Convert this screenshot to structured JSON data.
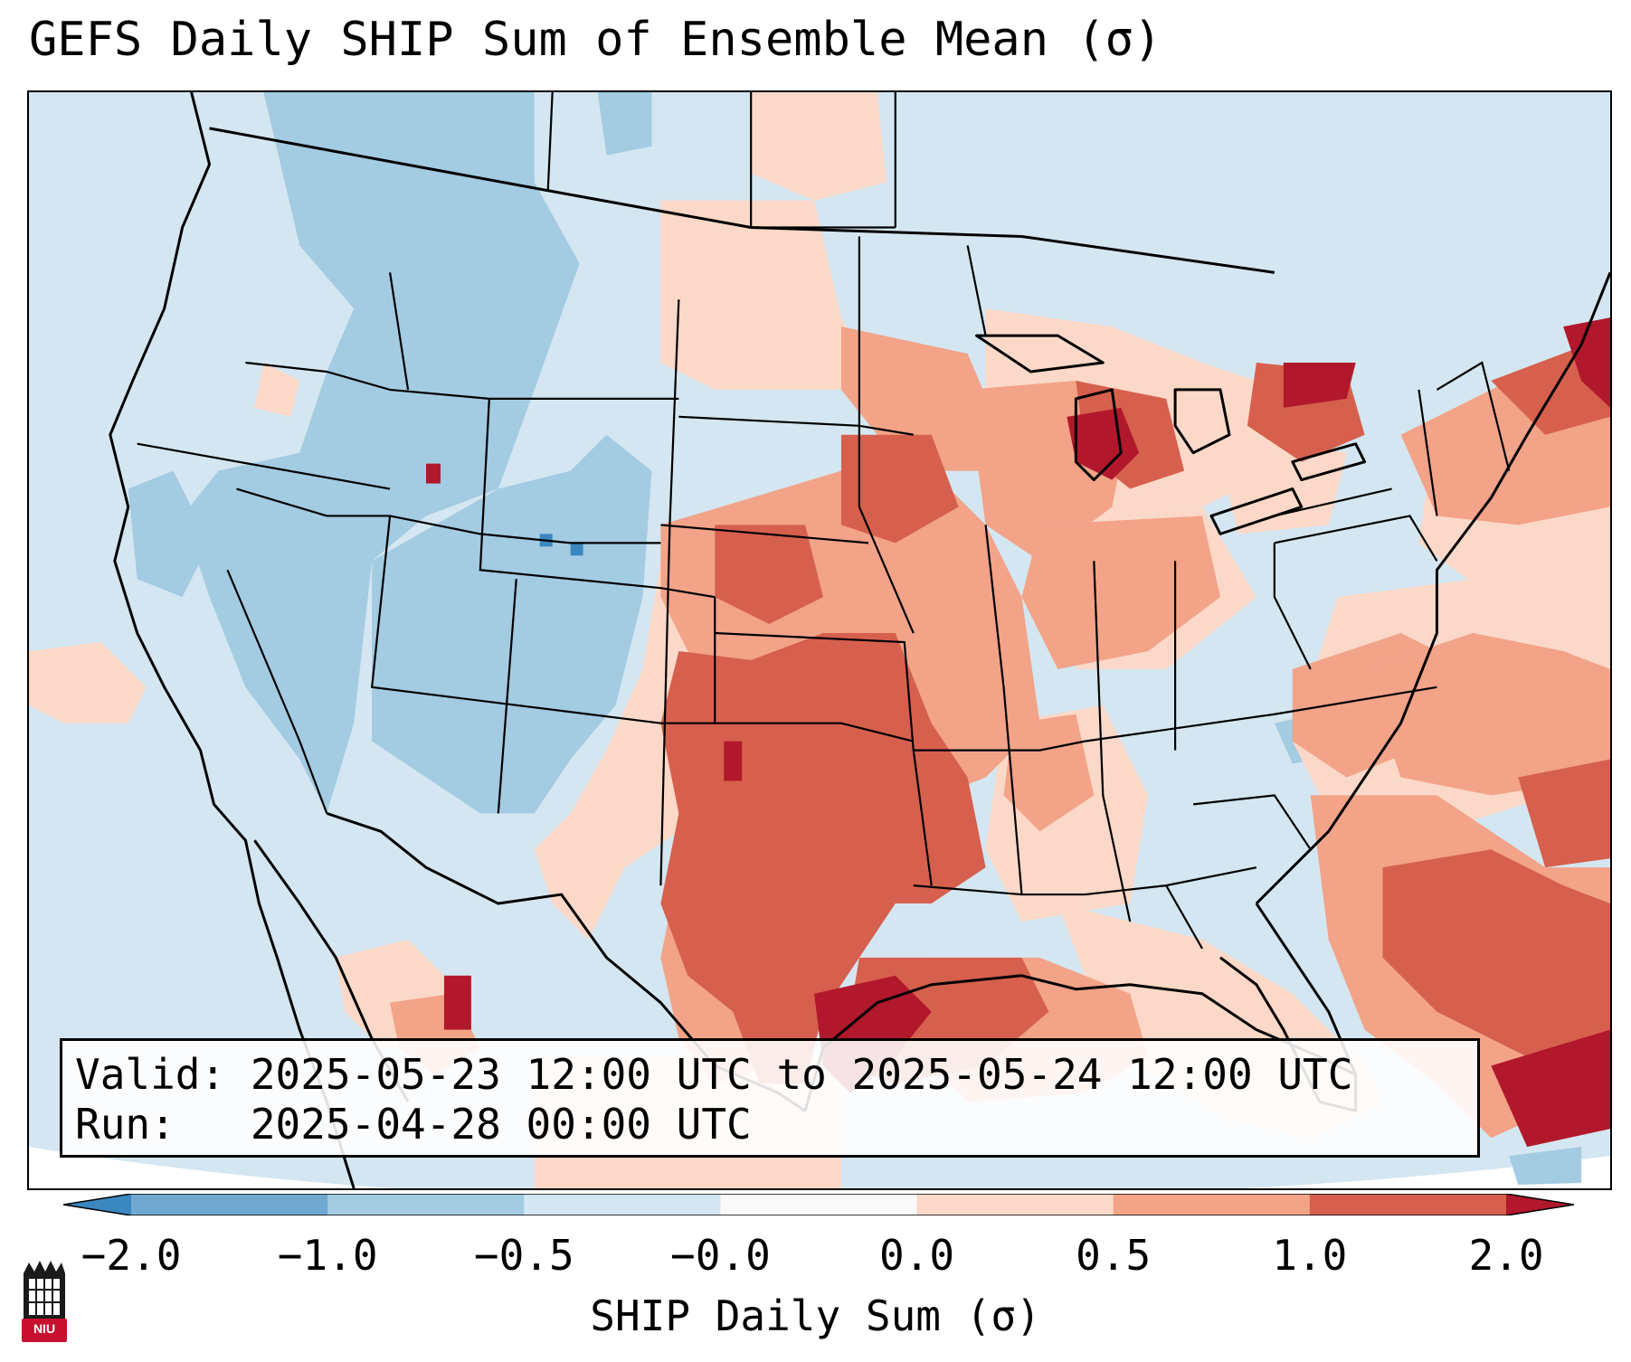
{
  "title": "GEFS Daily SHIP Sum of Ensemble Mean (σ)",
  "info": {
    "valid_line": "Valid: 2025-05-23 12:00 UTC to 2025-05-24 12:00 UTC",
    "run_line": "Run:   2025-04-28 00:00 UTC"
  },
  "colorbar": {
    "label": "SHIP Daily Sum (σ)",
    "ticks": [
      "−2.0",
      "−1.0",
      "−0.5",
      "−0.0",
      "0.0",
      "0.5",
      "1.0",
      "2.0"
    ],
    "colors": [
      "#3b87c0",
      "#6fa9d2",
      "#a3cbe2",
      "#d4e6f1",
      "#f9f9f9",
      "#fbd8c7",
      "#f2a388",
      "#d6604d",
      "#b2182b"
    ]
  },
  "logo": {
    "text": "NIU",
    "color": "#c8102e"
  }
}
